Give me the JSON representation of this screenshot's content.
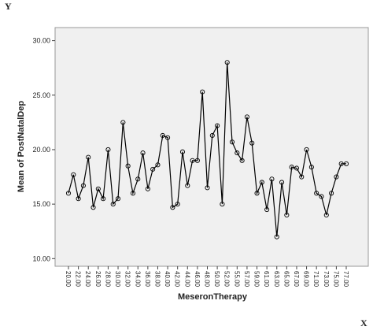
{
  "chart_data": {
    "type": "line",
    "annotations": [
      "Y",
      "X"
    ],
    "x_label": "MeseronTherapy",
    "y_label": "Mean of PostNatalDep",
    "categories": [
      "20.00",
      null,
      "22.00",
      null,
      "24.00",
      null,
      "26.00",
      null,
      "28.00",
      null,
      "30.00",
      null,
      "32.00",
      null,
      "34.00",
      null,
      "36.00",
      null,
      "38.00",
      null,
      "40.00",
      null,
      "42.00",
      null,
      "44.00",
      null,
      "46.00",
      null,
      "48.00",
      null,
      "50.00",
      null,
      "52.00",
      null,
      "55.00",
      null,
      "57.00",
      null,
      "59.00",
      null,
      "61.00",
      null,
      "63.00",
      null,
      "65.00",
      null,
      "67.00",
      null,
      "69.00",
      null,
      "71.00",
      null,
      "73.00",
      null,
      "75.00",
      null,
      "77.00"
    ],
    "values": [
      16.0,
      17.7,
      15.5,
      16.7,
      19.3,
      14.7,
      16.4,
      15.5,
      20.0,
      15.0,
      15.5,
      22.5,
      18.5,
      16.0,
      17.3,
      19.7,
      16.4,
      18.2,
      18.6,
      21.3,
      21.1,
      14.7,
      15.0,
      19.8,
      16.7,
      19.0,
      19.0,
      25.3,
      16.5,
      21.3,
      22.2,
      15.0,
      28.0,
      20.7,
      19.7,
      19.0,
      23.0,
      20.6,
      16.0,
      17.0,
      14.5,
      17.3,
      12.0,
      17.0,
      14.0,
      18.4,
      18.3,
      17.5,
      20.0,
      18.4,
      16.0,
      15.7,
      14.0,
      16.0,
      17.5,
      18.7,
      18.7
    ],
    "color": "#000000",
    "ylim": [
      9.3,
      31.2
    ],
    "yticks": [
      {
        "value": 10,
        "label": "10.00"
      },
      {
        "value": 15,
        "label": "15.00"
      },
      {
        "value": 20,
        "label": "20.00"
      },
      {
        "value": 25,
        "label": "25.00"
      },
      {
        "value": 30,
        "label": "30.00"
      }
    ],
    "grid": false
  }
}
